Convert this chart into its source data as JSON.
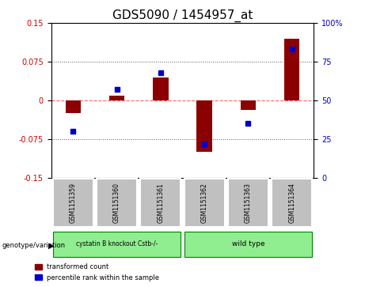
{
  "title": "GDS5090 / 1454957_at",
  "samples": [
    "GSM1151359",
    "GSM1151360",
    "GSM1151361",
    "GSM1151362",
    "GSM1151363",
    "GSM1151364"
  ],
  "transformed_count": [
    -0.025,
    0.01,
    0.045,
    -0.1,
    -0.018,
    0.12
  ],
  "percentile_rank": [
    30,
    57,
    68,
    22,
    35,
    83
  ],
  "ylim_left": [
    -0.15,
    0.15
  ],
  "ylim_right": [
    0,
    100
  ],
  "yticks_left": [
    -0.15,
    -0.075,
    0,
    0.075,
    0.15
  ],
  "yticks_right": [
    0,
    25,
    50,
    75,
    100
  ],
  "ytick_labels_left": [
    "-0.15",
    "-0.075",
    "0",
    "0.075",
    "0.15"
  ],
  "ytick_labels_right": [
    "0",
    "25",
    "50",
    "75",
    "100%"
  ],
  "group1_label": "cystatin B knockout Cstb-/-",
  "group2_label": "wild type",
  "group_color": "#90EE90",
  "bar_color_red": "#8B0000",
  "bar_color_blue": "#0000CD",
  "zero_line_color": "#FF6666",
  "dotted_line_color": "#555555",
  "sample_box_color": "#C0C0C0",
  "genotype_label": "genotype/variation",
  "legend_red": "transformed count",
  "legend_blue": "percentile rank within the sample",
  "title_fontsize": 11,
  "tick_fontsize": 7
}
